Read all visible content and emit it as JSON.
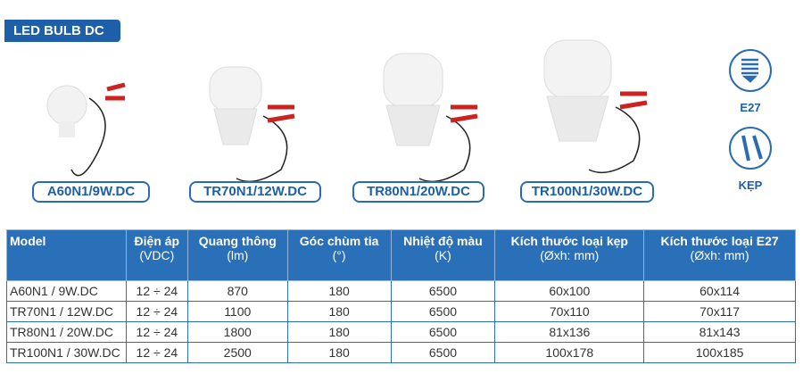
{
  "title": "LED BULB DC",
  "products": [
    {
      "label": "A60N1/9W.DC"
    },
    {
      "label": "TR70N1/12W.DC"
    },
    {
      "label": "TR80N1/20W.DC"
    },
    {
      "label": "TR100N1/30W.DC"
    }
  ],
  "icons": [
    {
      "name": "e27-socket-icon",
      "label": "E27"
    },
    {
      "name": "clamp-icon",
      "label": "KẸP"
    }
  ],
  "table": {
    "headers": [
      {
        "title": "Model",
        "unit": ""
      },
      {
        "title": "Điện áp",
        "unit": "(VDC)"
      },
      {
        "title": "Quang thông",
        "unit": "(lm)"
      },
      {
        "title": "Góc chùm tia",
        "unit": "(°)"
      },
      {
        "title": "Nhiệt độ màu",
        "unit": "(K)"
      },
      {
        "title": "Kích thước loại kẹp",
        "unit": "(Øxh: mm)"
      },
      {
        "title": "Kích thước loại E27",
        "unit": "(Øxh: mm)"
      }
    ],
    "rows": [
      [
        "A60N1 / 9W.DC",
        "12 ÷ 24",
        "870",
        "180",
        "6500",
        "60x100",
        "60x114"
      ],
      [
        "TR70N1 / 12W.DC",
        "12 ÷ 24",
        "1100",
        "180",
        "6500",
        "70x110",
        "70x117"
      ],
      [
        "TR80N1 / 20W.DC",
        "12 ÷ 24",
        "1800",
        "180",
        "6500",
        "81x136",
        "81x143"
      ],
      [
        "TR100N1 / 30W.DC",
        "12 ÷ 24",
        "2500",
        "180",
        "6500",
        "100x178",
        "100x185"
      ]
    ]
  },
  "colors": {
    "brand": "#1d5fa8",
    "header": "#2a70b8"
  }
}
